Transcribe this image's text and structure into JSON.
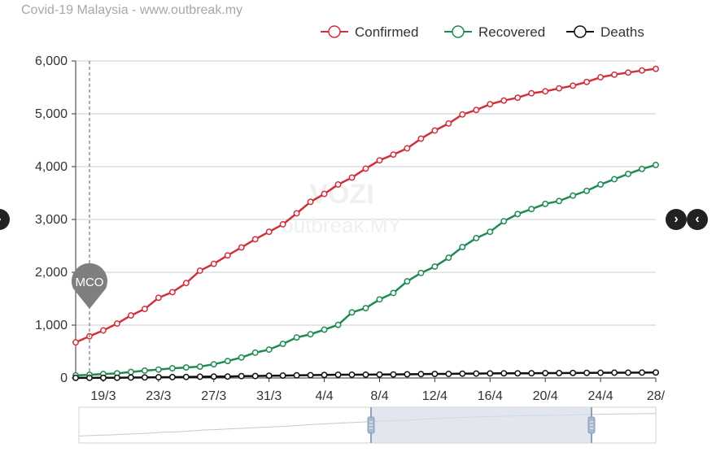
{
  "header": {
    "title": "Covid-19 Malaysia - www.outbreak.my"
  },
  "watermark": {
    "line1": "VOZI",
    "line2": "outbreak.MY"
  },
  "marker": {
    "label": "MCO"
  },
  "nav": {
    "prev_icon": "chevron-left-icon",
    "next_icon": "chevron-right-icon"
  },
  "colors": {
    "confirmed": "#d0303a",
    "recovered": "#1f8a55",
    "deaths": "#111111",
    "grid": "#cccccc",
    "slider": "#d7deea"
  },
  "chart_data": {
    "type": "line",
    "x": [
      "17/3",
      "18/3",
      "19/3",
      "20/3",
      "21/3",
      "22/3",
      "23/3",
      "24/3",
      "25/3",
      "26/3",
      "27/3",
      "28/3",
      "29/3",
      "30/3",
      "31/3",
      "1/4",
      "2/4",
      "3/4",
      "4/4",
      "5/4",
      "6/4",
      "7/4",
      "8/4",
      "9/4",
      "10/4",
      "11/4",
      "12/4",
      "13/4",
      "14/4",
      "15/4",
      "16/4",
      "17/4",
      "18/4",
      "19/4",
      "20/4",
      "21/4",
      "22/4",
      "23/4",
      "24/4",
      "25/4",
      "26/4",
      "27/4",
      "28/4"
    ],
    "x_tick_labels": [
      "19/3",
      "23/3",
      "27/3",
      "31/3",
      "4/4",
      "8/4",
      "12/4",
      "16/4",
      "20/4",
      "24/4",
      "28/"
    ],
    "ylim": [
      0,
      6000
    ],
    "y_ticks": [
      "0",
      "1,000",
      "2,000",
      "3,000",
      "4,000",
      "5,000",
      "6,000"
    ],
    "grid": true,
    "legend_position": "top-right",
    "annotation": {
      "label": "MCO",
      "x": "18/3"
    },
    "series": [
      {
        "name": "Confirmed",
        "color": "#d0303a",
        "values": [
          673,
          790,
          900,
          1030,
          1183,
          1306,
          1518,
          1624,
          1796,
          2031,
          2161,
          2320,
          2470,
          2626,
          2766,
          2908,
          3116,
          3333,
          3483,
          3662,
          3793,
          3963,
          4119,
          4228,
          4346,
          4530,
          4683,
          4817,
          4987,
          5072,
          5182,
          5251,
          5305,
          5389,
          5425,
          5482,
          5532,
          5603,
          5691,
          5742,
          5780,
          5820,
          5851
        ]
      },
      {
        "name": "Recovered",
        "color": "#1f8a55",
        "values": [
          49,
          60,
          75,
          87,
          114,
          139,
          159,
          183,
          199,
          215,
          259,
          320,
          388,
          479,
          537,
          645,
          767,
          827,
          915,
          1005,
          1241,
          1322,
          1487,
          1608,
          1830,
          1987,
          2108,
          2276,
          2478,
          2647,
          2766,
          2967,
          3103,
          3197,
          3295,
          3349,
          3452,
          3542,
          3663,
          3762,
          3862,
          3957,
          4032
        ]
      },
      {
        "name": "Deaths",
        "color": "#111111",
        "values": [
          2,
          2,
          3,
          4,
          8,
          10,
          14,
          16,
          19,
          23,
          26,
          27,
          35,
          37,
          43,
          45,
          50,
          53,
          57,
          61,
          62,
          63,
          65,
          67,
          70,
          73,
          76,
          77,
          82,
          83,
          86,
          88,
          88,
          89,
          92,
          93,
          95,
          96,
          98,
          100,
          100,
          102,
          103
        ]
      }
    ]
  }
}
